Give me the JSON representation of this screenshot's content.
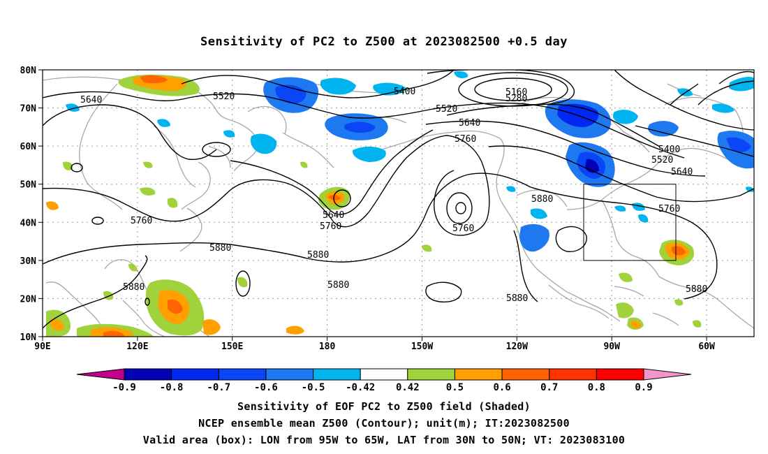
{
  "title": "Sensitivity of PC2 to Z500 at 2023082500 +0.5 day",
  "lat_labels": [
    "80N",
    "70N",
    "60N",
    "50N",
    "40N",
    "30N",
    "20N",
    "10N"
  ],
  "lon_labels": [
    "90E",
    "120E",
    "150E",
    "180",
    "150W",
    "120W",
    "90W",
    "60W"
  ],
  "contour_labels": [
    "5640",
    "5520",
    "5400",
    "5160",
    "5280",
    "5520",
    "5640",
    "5760",
    "5400",
    "5520",
    "5640",
    "5760",
    "5640",
    "5760",
    "5760",
    "5880",
    "5880",
    "5880",
    "5880",
    "5880",
    "5880",
    "5880",
    "5760"
  ],
  "colorbar": {
    "ticks": [
      "-0.9",
      "-0.8",
      "-0.7",
      "-0.6",
      "-0.5",
      "-0.42",
      "0.42",
      "0.5",
      "0.6",
      "0.7",
      "0.8",
      "0.9"
    ],
    "colors": [
      "#c0008c",
      "#0000b4",
      "#0028f0",
      "#0a46f5",
      "#1e78f0",
      "#00b4f0",
      "#ffffff",
      "#a0d23c",
      "#ffa000",
      "#ff6400",
      "#ff3200",
      "#ff0000",
      "#f096c8"
    ]
  },
  "footer": {
    "line1": "Sensitivity of EOF PC2 to Z500 field (Shaded)",
    "line2": "NCEP ensemble mean Z500 (Contour); unit(m); IT:2023082500",
    "line3": "Valid area (box): LON from 95W to 65W, LAT from 30N to 50N; VT: 2023083100"
  }
}
